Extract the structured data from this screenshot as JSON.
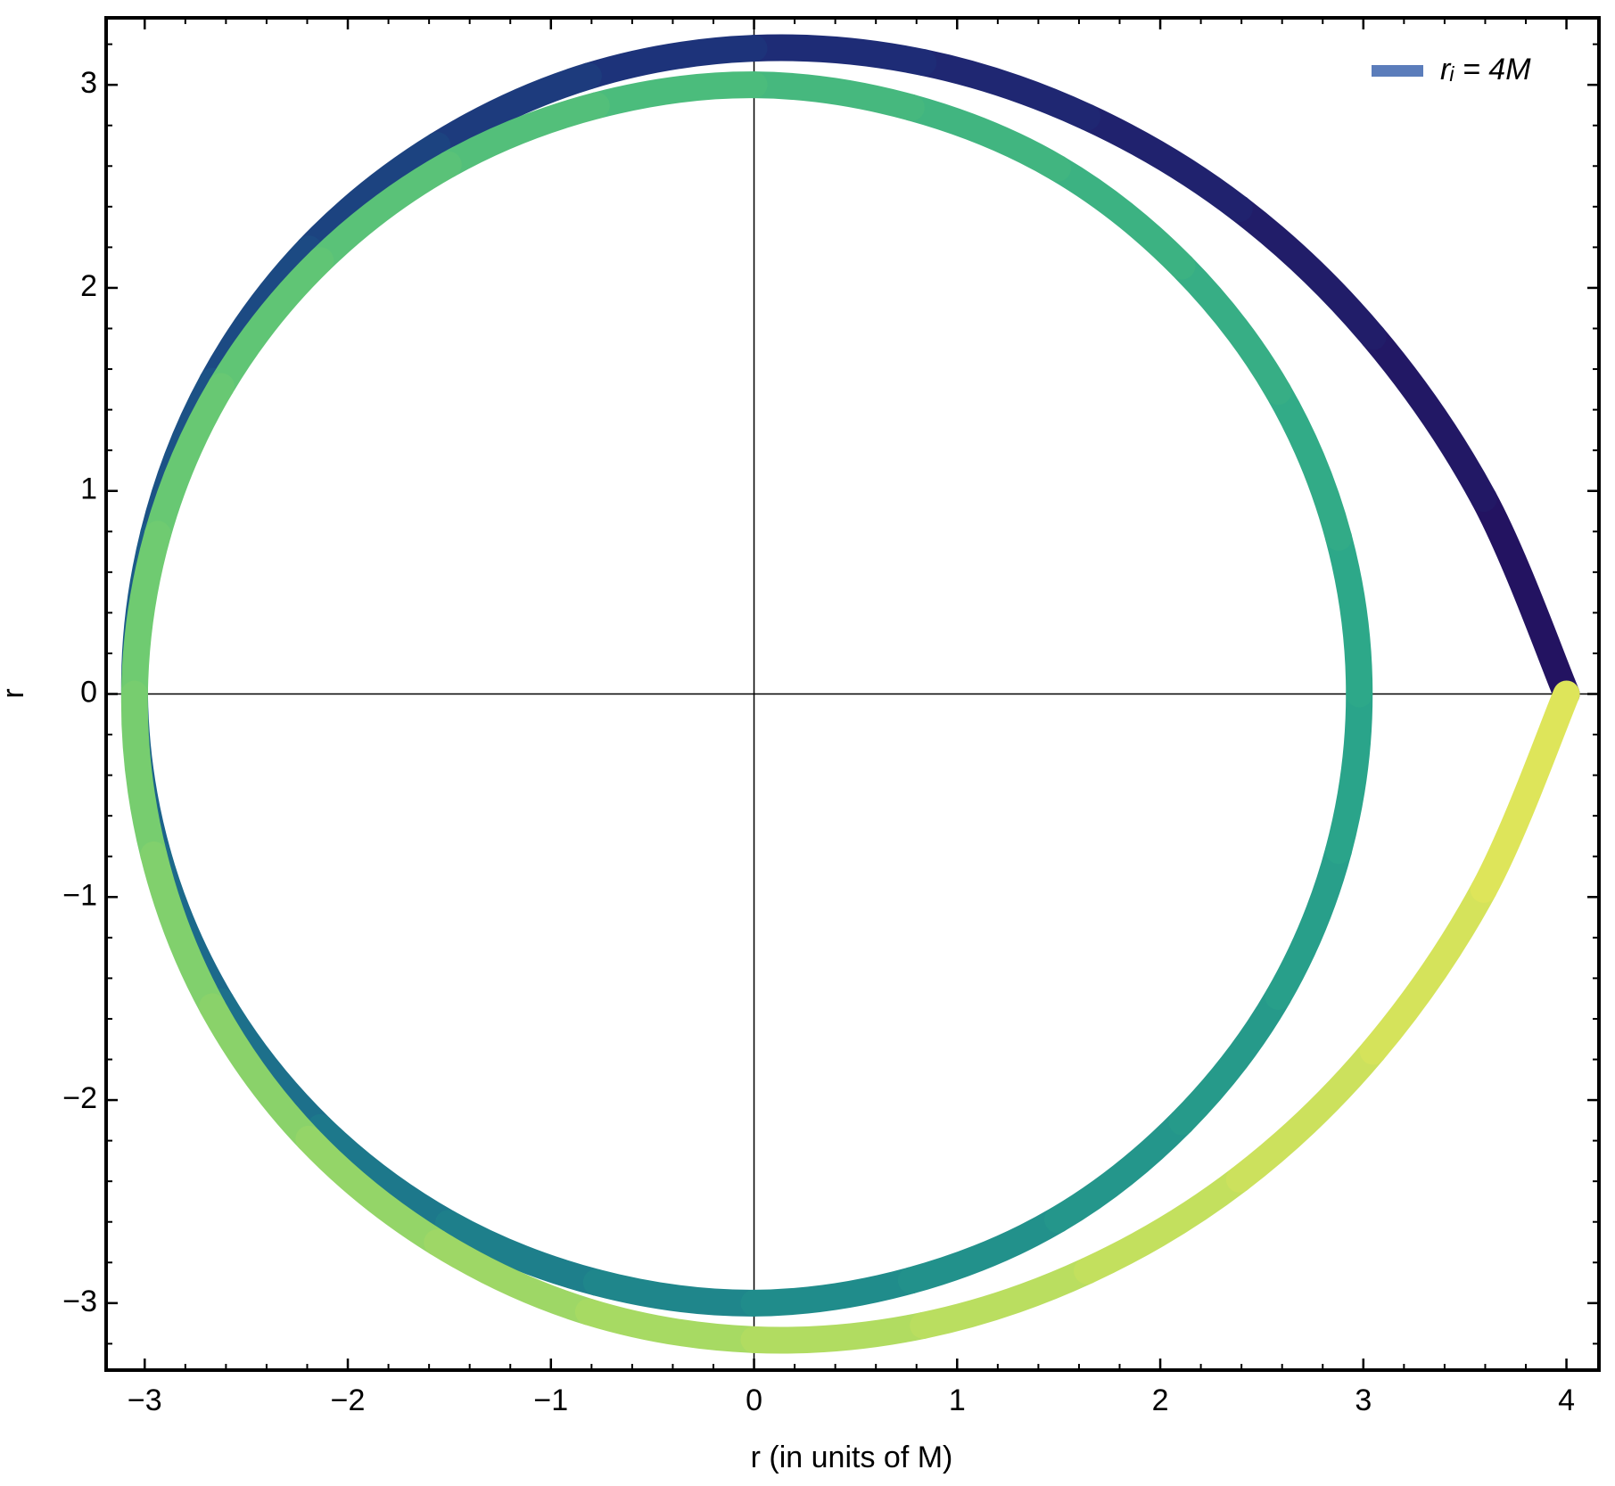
{
  "chart_data": {
    "type": "line",
    "x_label": "r (in units of M)",
    "y_label": "r",
    "xlim": [
      -3.19,
      4.16
    ],
    "ylim": [
      -3.33,
      3.33
    ],
    "xticks": [
      {
        "value": -3,
        "label": "−3"
      },
      {
        "value": -2,
        "label": "−2"
      },
      {
        "value": -1,
        "label": "−1"
      },
      0,
      1,
      2,
      3,
      4
    ],
    "yticks": [
      {
        "value": -3,
        "label": "−3"
      },
      {
        "value": -2,
        "label": "−2"
      },
      {
        "value": -1,
        "label": "−1"
      },
      0,
      1,
      2,
      3
    ],
    "minor_tick_step": 0.2,
    "origin_axes": true,
    "legend_position": "top-right",
    "series": [
      {
        "name": "rᵢ = 4M",
        "color": "#5b7dbb",
        "gradient": [
          "#23105f",
          "#1d2f78",
          "#1b5e8b",
          "#1f8a8b",
          "#2ba68a",
          "#48ba7d",
          "#72cc70",
          "#acdb62",
          "#e3e659"
        ],
        "x": [
          4,
          3.593,
          3.048,
          2.39,
          1.64,
          0.833,
          0,
          -0.815,
          -1.56,
          -2.192,
          -2.667,
          -2.956,
          -3.05,
          -2.936,
          -2.624,
          -2.135,
          -1.505,
          -0.776,
          0,
          0.774,
          1.495,
          2.107,
          2.581,
          2.878,
          2.98,
          2.878,
          2.581,
          2.107,
          1.495,
          0.774,
          0,
          -0.776,
          -1.505,
          -2.135,
          -2.624,
          -2.936,
          -3.05,
          -2.956,
          -2.667,
          -2.192,
          -1.56,
          -0.815,
          0,
          0.833,
          1.64,
          2.39,
          3.048,
          3.593,
          4
        ],
        "values": [
          0,
          0.963,
          1.76,
          2.39,
          2.841,
          3.11,
          3.18,
          3.043,
          2.702,
          2.192,
          1.54,
          0.792,
          0,
          -0.787,
          -1.515,
          -2.135,
          -2.607,
          -2.898,
          -3.0,
          -2.888,
          -2.589,
          -2.107,
          -1.49,
          -0.771,
          0,
          0.771,
          1.49,
          2.107,
          2.589,
          2.888,
          3.0,
          2.898,
          2.607,
          2.135,
          1.515,
          0.787,
          0,
          -0.792,
          -1.54,
          -2.192,
          -2.702,
          -3.043,
          -3.18,
          -3.11,
          -2.841,
          -2.39,
          -1.76,
          -0.963,
          0
        ]
      }
    ]
  }
}
